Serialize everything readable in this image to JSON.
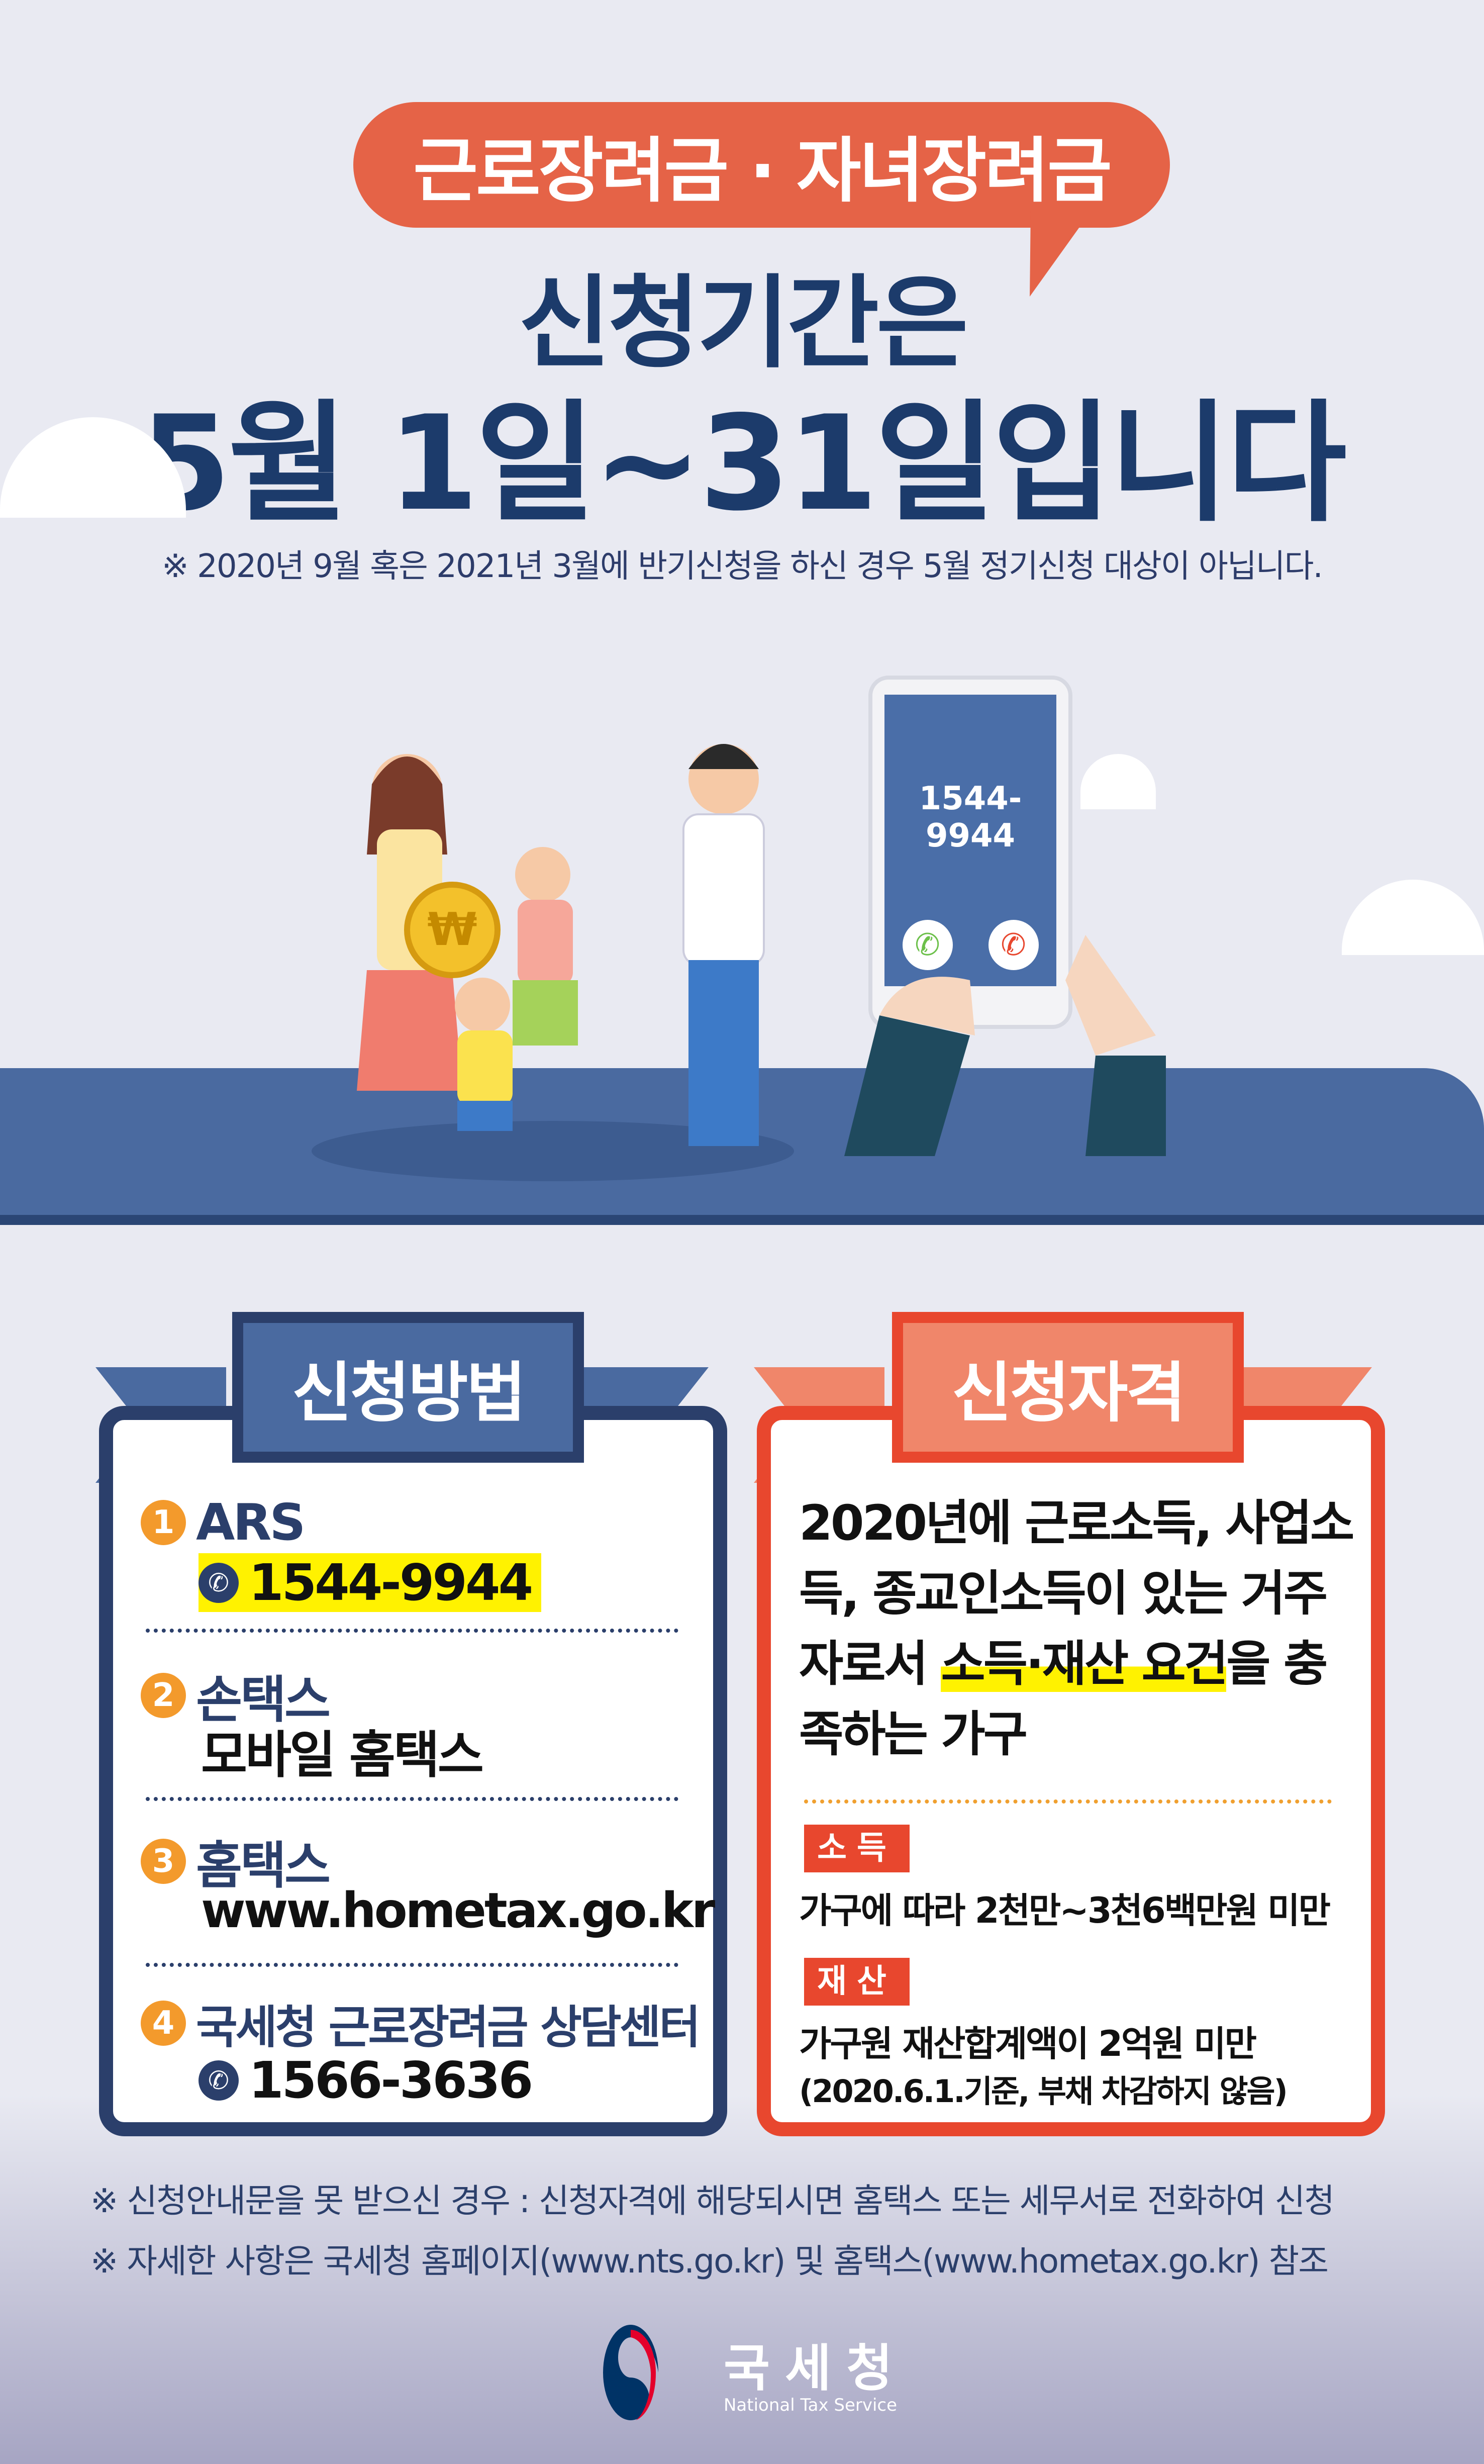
{
  "header": {
    "badge": "근로장려금 · 자녀장려금",
    "line1": "신청기간은",
    "line2": "5월 1일~31일입니다",
    "note": "※ 2020년 9월 혹은 2021년 3월에 반기신청을 하신 경우 5월 정기신청 대상이 아닙니다."
  },
  "illustration": {
    "phone_number": "1544-9944"
  },
  "method": {
    "title": "신청방법",
    "items": [
      {
        "num": "1",
        "label": "ARS",
        "detail": "1544-9944",
        "icon": "phone-icon"
      },
      {
        "num": "2",
        "label": "손택스",
        "detail": "모바일 홈택스"
      },
      {
        "num": "3",
        "label": "홈택스",
        "detail": "www.hometax.go.kr"
      },
      {
        "num": "4",
        "label": "국세청 근로장려금 상담센터",
        "detail": "1566-3636",
        "icon": "phone-icon"
      }
    ]
  },
  "eligibility": {
    "title": "신청자격",
    "text_pre": "2020년에 근로소득, 사업소득, 종교인소득이 있는 거주자로서 ",
    "text_hl": "소득·재산 요건",
    "text_post": "을 충족하는 가구",
    "income_tag": "소득",
    "income_text": "가구에 따라 2천만~3천6백만원 미만",
    "asset_tag": "재산",
    "asset_text": "가구원 재산합계액이 2억원 미만",
    "asset_note": "(2020.6.1.기준, 부채 차감하지 않음)"
  },
  "footer": {
    "note1": "※ 신청안내문을 못 받으신 경우 : 신청자격에 해당되시면 홈택스 또는 세무서로 전화하여 신청",
    "note2": "※ 자세한 사항은 국세청 홈페이지(www.nts.go.kr) 및 홈택스(www.hometax.go.kr) 참조",
    "logo_ko": "국세청",
    "logo_en": "National Tax Service"
  },
  "colors": {
    "navy": "#1c3b6b",
    "orange": "#e56347",
    "red": "#e8472e",
    "blue": "#4a6aa0",
    "highlight": "#fff200"
  }
}
